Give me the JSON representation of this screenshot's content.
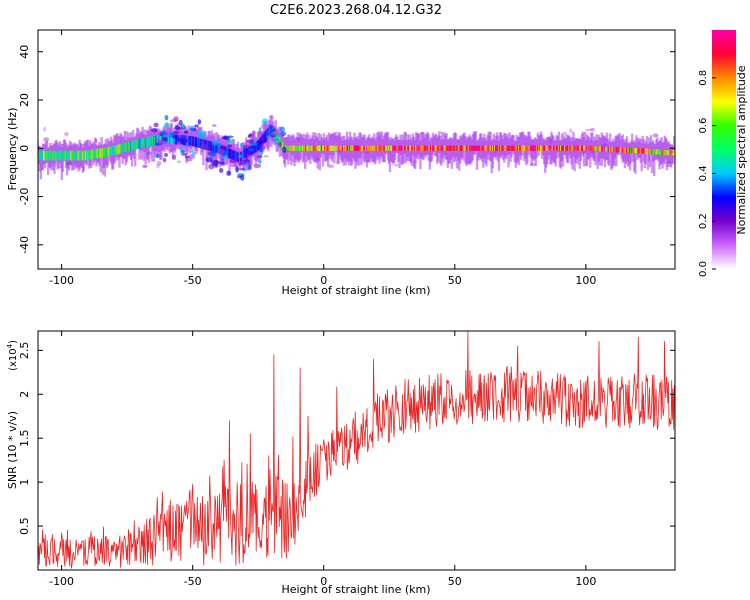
{
  "figure_title": "C2E6.2023.268.04.12.G32",
  "colors": {
    "snr_line": "#ee2222",
    "axis": "#000000",
    "background": "#ffffff"
  },
  "chart_data": [
    {
      "type": "heatmap",
      "name": "spectrogram",
      "xlabel": "Height of straight line (km)",
      "ylabel": "Frequency (Hz)",
      "xlim": [
        -109,
        134
      ],
      "ylim": [
        -50,
        49
      ],
      "xticks": [
        -100,
        -50,
        0,
        50,
        100
      ],
      "yticks": [
        -40,
        -20,
        0,
        20,
        40
      ],
      "colorbar": {
        "label": "Normalized spectral amplitude",
        "range": [
          0,
          1
        ],
        "ticks": [
          0.0,
          0.2,
          0.4,
          0.6,
          0.8
        ],
        "colormap": [
          "#ffffff",
          "#cc66ff",
          "#7700cc",
          "#0000ff",
          "#00ccff",
          "#00ff66",
          "#33ff00",
          "#ffff00",
          "#ff8800",
          "#ff0033",
          "#ff00aa"
        ]
      },
      "ridge": [
        {
          "x": -109,
          "freq": -3,
          "amp": 0.55
        },
        {
          "x": -100,
          "freq": -3,
          "amp": 0.55
        },
        {
          "x": -90,
          "freq": -3,
          "amp": 0.55
        },
        {
          "x": -80,
          "freq": -1,
          "amp": 0.55
        },
        {
          "x": -70,
          "freq": 2,
          "amp": 0.45
        },
        {
          "x": -60,
          "freq": 4,
          "amp": 0.4
        },
        {
          "x": -50,
          "freq": 3,
          "amp": 0.3
        },
        {
          "x": -40,
          "freq": 0,
          "amp": 0.3
        },
        {
          "x": -32,
          "freq": -4,
          "amp": 0.3
        },
        {
          "x": -25,
          "freq": 1,
          "amp": 0.3
        },
        {
          "x": -20,
          "freq": 8,
          "amp": 0.3
        },
        {
          "x": -15,
          "freq": 0,
          "amp": 0.65
        },
        {
          "x": 0,
          "freq": 0,
          "amp": 0.75
        },
        {
          "x": 20,
          "freq": 0,
          "amp": 0.85
        },
        {
          "x": 40,
          "freq": 0,
          "amp": 0.9
        },
        {
          "x": 60,
          "freq": 0,
          "amp": 0.9
        },
        {
          "x": 80,
          "freq": 0,
          "amp": 0.9
        },
        {
          "x": 100,
          "freq": 0,
          "amp": 0.85
        },
        {
          "x": 120,
          "freq": -1,
          "amp": 0.75
        },
        {
          "x": 134,
          "freq": -2,
          "amp": 0.7
        }
      ]
    },
    {
      "type": "line",
      "name": "snr",
      "xlabel": "Height of straight line (km)",
      "ylabel": "SNR (10 * v/v)",
      "yscale_label": "(x10",
      "yscale_exp": "4",
      "xlim": [
        -109,
        134
      ],
      "ylim": [
        0,
        2.72
      ],
      "xticks": [
        -100,
        -50,
        0,
        50,
        100
      ],
      "yticks": [
        0.5,
        1.0,
        1.5,
        2.0,
        2.5
      ],
      "envelope": [
        {
          "x": -109,
          "y": 0.2
        },
        {
          "x": -90,
          "y": 0.2
        },
        {
          "x": -75,
          "y": 0.22
        },
        {
          "x": -62,
          "y": 0.38
        },
        {
          "x": -50,
          "y": 0.45
        },
        {
          "x": -40,
          "y": 0.5
        },
        {
          "x": -30,
          "y": 0.55
        },
        {
          "x": -20,
          "y": 0.58
        },
        {
          "x": -10,
          "y": 0.7
        },
        {
          "x": -5,
          "y": 1.05
        },
        {
          "x": 0,
          "y": 1.25
        },
        {
          "x": 10,
          "y": 1.45
        },
        {
          "x": 20,
          "y": 1.7
        },
        {
          "x": 30,
          "y": 1.85
        },
        {
          "x": 40,
          "y": 1.9
        },
        {
          "x": 50,
          "y": 1.95
        },
        {
          "x": 70,
          "y": 2.0
        },
        {
          "x": 90,
          "y": 1.95
        },
        {
          "x": 110,
          "y": 1.92
        },
        {
          "x": 134,
          "y": 1.9
        }
      ],
      "spikes": [
        {
          "x": -38,
          "y": 1.25
        },
        {
          "x": -36,
          "y": 1.7
        },
        {
          "x": -28,
          "y": 1.55
        },
        {
          "x": -21,
          "y": 1.3
        },
        {
          "x": -19,
          "y": 2.45
        },
        {
          "x": -9,
          "y": 2.3
        },
        {
          "x": -6,
          "y": 1.75
        },
        {
          "x": 5,
          "y": 2.08
        },
        {
          "x": 12,
          "y": 1.8
        },
        {
          "x": 19,
          "y": 2.4
        },
        {
          "x": 55,
          "y": 2.72
        },
        {
          "x": 74,
          "y": 2.55
        },
        {
          "x": 105,
          "y": 2.6
        },
        {
          "x": 120,
          "y": 2.65
        },
        {
          "x": 130,
          "y": 2.6
        }
      ]
    }
  ]
}
